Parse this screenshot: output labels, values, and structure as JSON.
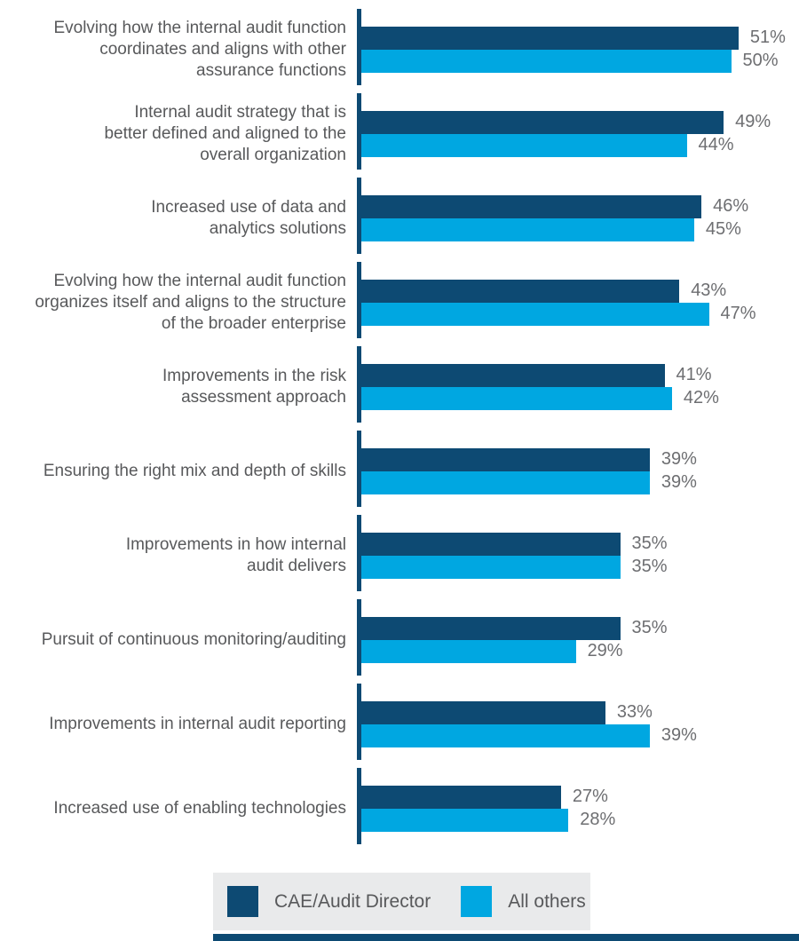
{
  "chart_data": {
    "type": "bar",
    "orientation": "horizontal",
    "unit": "%",
    "xlim": [
      0,
      59
    ],
    "grid": false,
    "title": "",
    "axis_color": "#0d4a73",
    "categories": [
      [
        "Evolving how the internal audit function",
        "coordinates and aligns with other",
        "assurance functions"
      ],
      [
        "Internal audit strategy that is",
        "better defined and aligned to the",
        "overall organization"
      ],
      [
        "Increased use of data and",
        "analytics solutions"
      ],
      [
        "Evolving how the internal audit function",
        "organizes itself and aligns to the structure",
        "of the broader enterprise"
      ],
      [
        "Improvements in the risk",
        "assessment approach"
      ],
      [
        "Ensuring the right mix and depth of skills"
      ],
      [
        "Improvements in how internal",
        "audit delivers"
      ],
      [
        "Pursuit of continuous monitoring/auditing"
      ],
      [
        "Improvements in internal audit reporting"
      ],
      [
        "Increased use of enabling technologies"
      ]
    ],
    "series": [
      {
        "name": "CAE/Audit Director",
        "color": "#0d4a73",
        "values": [
          51,
          49,
          46,
          43,
          41,
          39,
          35,
          35,
          33,
          27
        ]
      },
      {
        "name": "All others",
        "color": "#00a7e1",
        "values": [
          50,
          44,
          45,
          47,
          42,
          39,
          35,
          29,
          39,
          28
        ]
      }
    ],
    "value_label_suffix": "%",
    "legend_position": "bottom"
  },
  "legend": {
    "background": "#e9eaeb",
    "items": [
      {
        "label": "CAE/Audit Director",
        "color": "#0d4a73"
      },
      {
        "label": "All others",
        "color": "#00a7e1"
      }
    ]
  },
  "text_colors": {
    "category_label": "#58595b",
    "value_label": "#6d6e71"
  }
}
